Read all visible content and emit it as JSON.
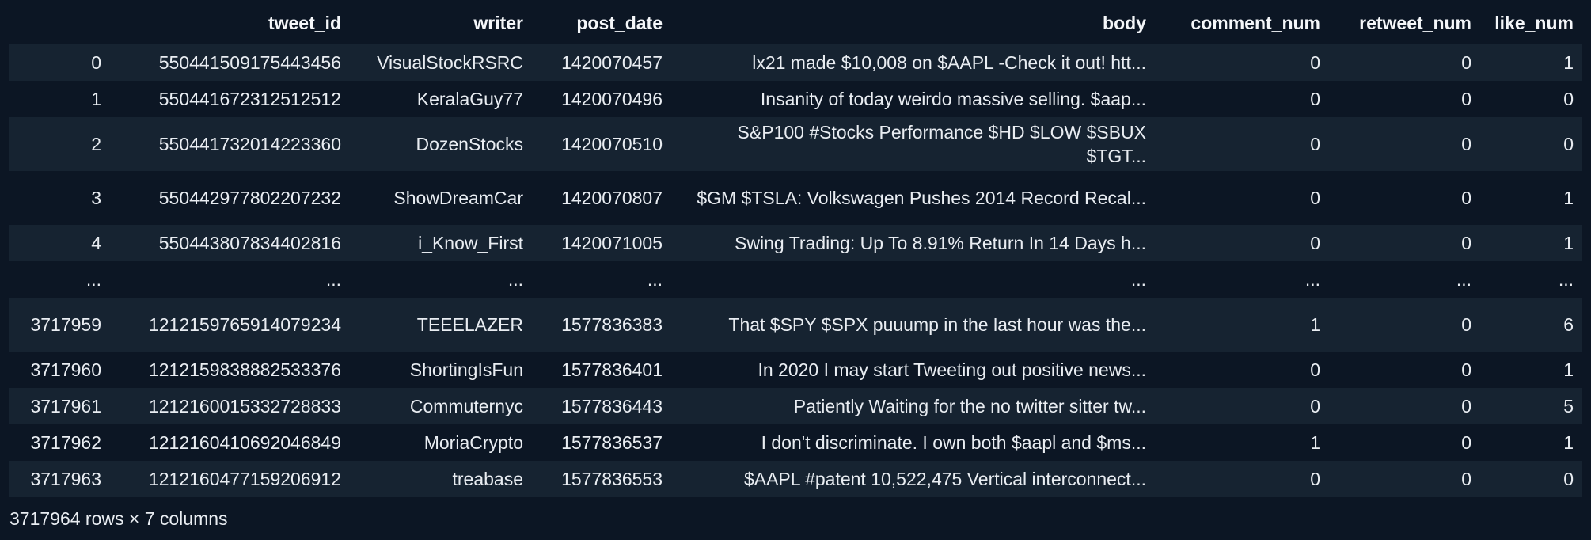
{
  "table": {
    "columns": [
      "",
      "tweet_id",
      "writer",
      "post_date",
      "body",
      "comment_num",
      "retweet_num",
      "like_num"
    ],
    "rows": [
      {
        "idx": "0",
        "tweet_id": "550441509175443456",
        "writer": "VisualStockRSRC",
        "post_date": "1420070457",
        "body": "lx21 made $10,008 on $AAPL -Check it out! htt...",
        "comment_num": "0",
        "retweet_num": "0",
        "like_num": "1"
      },
      {
        "idx": "1",
        "tweet_id": "550441672312512512",
        "writer": "KeralaGuy77",
        "post_date": "1420070496",
        "body": "Insanity of today weirdo massive selling. $aap...",
        "comment_num": "0",
        "retweet_num": "0",
        "like_num": "0"
      },
      {
        "idx": "2",
        "tweet_id": "550441732014223360",
        "writer": "DozenStocks",
        "post_date": "1420070510",
        "body": "S&P100 #Stocks Performance $HD $LOW $SBUX $TGT...",
        "comment_num": "0",
        "retweet_num": "0",
        "like_num": "0"
      },
      {
        "idx": "3",
        "tweet_id": "550442977802207232",
        "writer": "ShowDreamCar",
        "post_date": "1420070807",
        "body": "$GM $TSLA: Volkswagen Pushes 2014 Record Recal...",
        "comment_num": "0",
        "retweet_num": "0",
        "like_num": "1"
      },
      {
        "idx": "4",
        "tweet_id": "550443807834402816",
        "writer": "i_Know_First",
        "post_date": "1420071005",
        "body": "Swing Trading: Up To 8.91% Return In 14 Days h...",
        "comment_num": "0",
        "retweet_num": "0",
        "like_num": "1"
      },
      {
        "idx": "...",
        "tweet_id": "...",
        "writer": "...",
        "post_date": "...",
        "body": "...",
        "comment_num": "...",
        "retweet_num": "...",
        "like_num": "..."
      },
      {
        "idx": "3717959",
        "tweet_id": "1212159765914079234",
        "writer": "TEEELAZER",
        "post_date": "1577836383",
        "body": "That $SPY $SPX puuump in the last hour was the...",
        "comment_num": "1",
        "retweet_num": "0",
        "like_num": "6"
      },
      {
        "idx": "3717960",
        "tweet_id": "1212159838882533376",
        "writer": "ShortingIsFun",
        "post_date": "1577836401",
        "body": "In 2020 I may start Tweeting out positive news...",
        "comment_num": "0",
        "retweet_num": "0",
        "like_num": "1"
      },
      {
        "idx": "3717961",
        "tweet_id": "1212160015332728833",
        "writer": "Commuternyc",
        "post_date": "1577836443",
        "body": "Patiently Waiting for the no twitter sitter tw...",
        "comment_num": "0",
        "retweet_num": "0",
        "like_num": "5"
      },
      {
        "idx": "3717962",
        "tweet_id": "1212160410692046849",
        "writer": "MoriaCrypto",
        "post_date": "1577836537",
        "body": "I don't discriminate. I own both $aapl and $ms...",
        "comment_num": "1",
        "retweet_num": "0",
        "like_num": "1"
      },
      {
        "idx": "3717963",
        "tweet_id": "1212160477159206912",
        "writer": "treabase",
        "post_date": "1577836553",
        "body": "$AAPL #patent 10,522,475 Vertical interconnect...",
        "comment_num": "0",
        "retweet_num": "0",
        "like_num": "0"
      }
    ]
  },
  "footer": {
    "summary": "3717964 rows × 7 columns"
  },
  "colors": {
    "background": "#0c1624",
    "stripe": "#162331",
    "text": "#e9edf2"
  }
}
